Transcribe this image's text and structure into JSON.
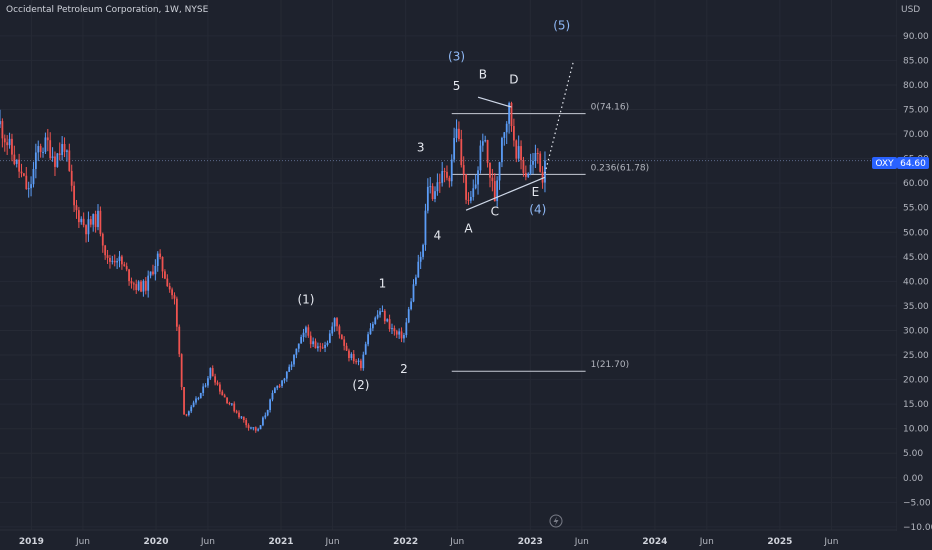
{
  "header": {
    "title": "Occidental Petroleum Corporation, 1W, NYSE",
    "currency": "USD"
  },
  "price_label": {
    "symbol": "OXY",
    "value": "64.60"
  },
  "colors": {
    "up": "#5b9cf6",
    "down": "#ef5350",
    "line": "#cfd8e8",
    "fib": "#c7cbd6"
  },
  "chart_data": {
    "type": "candlestick",
    "title": "Occidental Petroleum Corporation, 1W, NYSE",
    "ylabel": "USD",
    "ylim": [
      -10,
      95
    ],
    "y_ticks": [
      "90.00",
      "85.00",
      "80.00",
      "75.00",
      "70.00",
      "65.00",
      "60.00",
      "55.00",
      "50.00",
      "45.00",
      "40.00",
      "35.00",
      "30.00",
      "25.00",
      "20.00",
      "15.00",
      "10.00",
      "5.00",
      "0.00",
      "−5.00",
      "−10.00"
    ],
    "x_range": [
      "2018-10-01",
      "2025-12-10"
    ],
    "x_ticks": [
      {
        "date": "2019-01-01",
        "label": "2019",
        "year": true
      },
      {
        "date": "2019-06-01",
        "label": "Jun",
        "year": false
      },
      {
        "date": "2020-01-01",
        "label": "2020",
        "year": true
      },
      {
        "date": "2020-06-01",
        "label": "Jun",
        "year": false
      },
      {
        "date": "2021-01-01",
        "label": "2021",
        "year": true
      },
      {
        "date": "2021-06-01",
        "label": "Jun",
        "year": false
      },
      {
        "date": "2022-01-01",
        "label": "2022",
        "year": true
      },
      {
        "date": "2022-06-01",
        "label": "Jun",
        "year": false
      },
      {
        "date": "2023-01-01",
        "label": "2023",
        "year": true
      },
      {
        "date": "2023-06-01",
        "label": "Jun",
        "year": false
      },
      {
        "date": "2024-01-01",
        "label": "2024",
        "year": true
      },
      {
        "date": "2024-06-01",
        "label": "Jun",
        "year": false
      },
      {
        "date": "2025-01-01",
        "label": "2025",
        "year": true
      },
      {
        "date": "2025-06-01",
        "label": "Jun",
        "year": false
      }
    ],
    "price_path": [
      [
        "2018-10-01",
        72
      ],
      [
        "2018-11-05",
        66
      ],
      [
        "2018-12-24",
        58
      ],
      [
        "2019-01-21",
        67
      ],
      [
        "2019-02-18",
        68
      ],
      [
        "2019-03-11",
        65
      ],
      [
        "2019-04-08",
        68
      ],
      [
        "2019-05-06",
        55
      ],
      [
        "2019-06-10",
        51
      ],
      [
        "2019-07-15",
        53
      ],
      [
        "2019-08-12",
        44
      ],
      [
        "2019-09-09",
        45
      ],
      [
        "2019-10-14",
        41
      ],
      [
        "2019-11-04",
        39
      ],
      [
        "2019-12-02",
        39
      ],
      [
        "2020-01-06",
        45
      ],
      [
        "2020-02-03",
        40
      ],
      [
        "2020-02-24",
        36
      ],
      [
        "2020-03-09",
        25
      ],
      [
        "2020-03-23",
        13
      ],
      [
        "2020-04-13",
        14
      ],
      [
        "2020-05-18",
        18
      ],
      [
        "2020-06-08",
        22
      ],
      [
        "2020-07-13",
        17
      ],
      [
        "2020-08-17",
        14
      ],
      [
        "2020-09-21",
        11
      ],
      [
        "2020-10-26",
        9.5
      ],
      [
        "2020-11-16",
        13
      ],
      [
        "2020-12-14",
        18
      ],
      [
        "2021-01-18",
        21
      ],
      [
        "2021-02-22",
        27
      ],
      [
        "2021-03-15",
        30
      ],
      [
        "2021-04-12",
        26
      ],
      [
        "2021-05-17",
        28
      ],
      [
        "2021-06-07",
        32
      ],
      [
        "2021-07-19",
        25
      ],
      [
        "2021-08-23",
        23
      ],
      [
        "2021-09-13",
        30
      ],
      [
        "2021-10-18",
        34
      ],
      [
        "2021-11-15",
        31
      ],
      [
        "2021-12-06",
        29
      ],
      [
        "2021-12-27",
        29
      ],
      [
        "2022-01-24",
        39
      ],
      [
        "2022-02-21",
        47
      ],
      [
        "2022-03-07",
        60
      ],
      [
        "2022-03-21",
        58
      ],
      [
        "2022-04-11",
        61
      ],
      [
        "2022-05-09",
        62
      ],
      [
        "2022-05-30",
        72
      ],
      [
        "2022-06-13",
        64
      ],
      [
        "2022-07-04",
        55
      ],
      [
        "2022-07-25",
        60
      ],
      [
        "2022-08-15",
        70
      ],
      [
        "2022-08-29",
        64
      ],
      [
        "2022-09-19",
        57
      ],
      [
        "2022-10-10",
        70
      ],
      [
        "2022-10-31",
        75
      ],
      [
        "2022-11-21",
        67
      ],
      [
        "2022-12-19",
        62
      ],
      [
        "2023-01-09",
        64
      ],
      [
        "2023-01-23",
        66
      ],
      [
        "2023-02-06",
        61
      ],
      [
        "2023-02-13",
        64.6
      ]
    ],
    "annotations": {
      "trendlines": [
        {
          "name": "triangle-upper-line",
          "points": [
            [
              "2022-08-01",
              77.5
            ],
            [
              "2022-11-07",
              75.5
            ]
          ]
        },
        {
          "name": "triangle-lower-line",
          "points": [
            [
              "2022-06-27",
              54.5
            ],
            [
              "2023-02-13",
              61.2
            ]
          ]
        }
      ],
      "projection": {
        "name": "wave-5-projection-line",
        "points": [
          [
            "2023-02-13",
            62
          ],
          [
            "2023-05-08",
            85
          ]
        ]
      },
      "fib_levels": [
        {
          "name": "fib-level-0",
          "label": "0(74.16)",
          "price": 74.16,
          "start": "2022-05-16",
          "end": "2023-06-12"
        },
        {
          "name": "fib-level-0236",
          "label": "0.236(61.78)",
          "price": 61.78,
          "start": "2022-05-16",
          "end": "2023-06-12"
        },
        {
          "name": "fib-level-1",
          "label": "1(21.70)",
          "price": 21.7,
          "start": "2022-05-16",
          "end": "2023-06-12"
        }
      ],
      "current_price_line": 64.6,
      "wave_labels": [
        {
          "name": "wave-label-1-paren",
          "text": "(1)",
          "date": "2021-03-15",
          "price": 35.5,
          "style": "light"
        },
        {
          "name": "wave-label-2-paren",
          "text": "(2)",
          "date": "2021-08-23",
          "price": 18.1,
          "style": "light"
        },
        {
          "name": "wave-label-1",
          "text": "1",
          "date": "2021-10-25",
          "price": 38.8,
          "style": "light"
        },
        {
          "name": "wave-label-2",
          "text": "2",
          "date": "2021-12-27",
          "price": 21.3,
          "style": "light"
        },
        {
          "name": "wave-label-3",
          "text": "3",
          "date": "2022-02-14",
          "price": 66.4,
          "style": "light"
        },
        {
          "name": "wave-label-4",
          "text": "4",
          "date": "2022-04-04",
          "price": 48.5,
          "style": "light"
        },
        {
          "name": "wave-label-3-paren",
          "text": "(3)",
          "date": "2022-05-30",
          "price": 85.0,
          "style": "blue"
        },
        {
          "name": "wave-label-5",
          "text": "5",
          "date": "2022-05-30",
          "price": 79.0,
          "style": "light"
        },
        {
          "name": "wave-label-A",
          "text": "A",
          "date": "2022-07-04",
          "price": 50.0,
          "style": "light"
        },
        {
          "name": "wave-label-B",
          "text": "B",
          "date": "2022-08-15",
          "price": 81.3,
          "style": "light"
        },
        {
          "name": "wave-label-C",
          "text": "C",
          "date": "2022-09-19",
          "price": 53.4,
          "style": "light"
        },
        {
          "name": "wave-label-D",
          "text": "D",
          "date": "2022-11-14",
          "price": 80.3,
          "style": "light"
        },
        {
          "name": "wave-label-E",
          "text": "E",
          "date": "2023-01-16",
          "price": 57.4,
          "style": "light"
        },
        {
          "name": "wave-label-4-paren",
          "text": "(4)",
          "date": "2023-01-23",
          "price": 53.8,
          "style": "blue"
        },
        {
          "name": "wave-label-5-paren",
          "text": "(5)",
          "date": "2023-04-03",
          "price": 91.3,
          "style": "blue"
        }
      ]
    }
  }
}
